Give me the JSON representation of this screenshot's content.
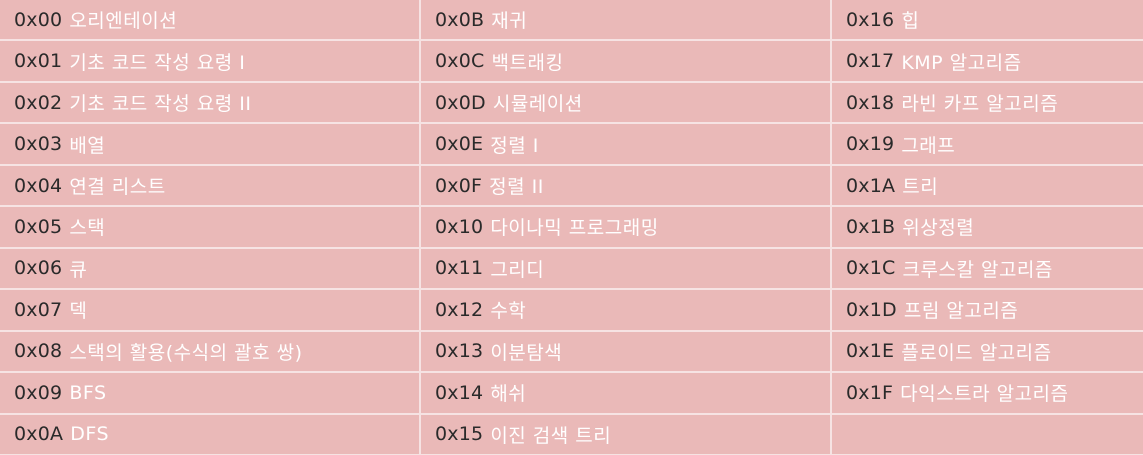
{
  "columns": [
    [
      {
        "code": "0x00",
        "title": "오리엔테이션"
      },
      {
        "code": "0x01",
        "title": "기초 코드 작성 요령 I"
      },
      {
        "code": "0x02",
        "title": "기초 코드 작성 요령 II"
      },
      {
        "code": "0x03",
        "title": "배열"
      },
      {
        "code": "0x04",
        "title": "연결 리스트"
      },
      {
        "code": "0x05",
        "title": "스택"
      },
      {
        "code": "0x06",
        "title": "큐"
      },
      {
        "code": "0x07",
        "title": "덱"
      },
      {
        "code": "0x08",
        "title": "스택의 활용(수식의 괄호 쌍)"
      },
      {
        "code": "0x09",
        "title": "BFS"
      },
      {
        "code": "0x0A",
        "title": "DFS"
      }
    ],
    [
      {
        "code": "0x0B",
        "title": "재귀"
      },
      {
        "code": "0x0C",
        "title": "백트래킹"
      },
      {
        "code": "0x0D",
        "title": "시뮬레이션"
      },
      {
        "code": "0x0E",
        "title": "정렬 I"
      },
      {
        "code": "0x0F",
        "title": "정렬 II"
      },
      {
        "code": "0x10",
        "title": "다이나믹 프로그래밍"
      },
      {
        "code": "0x11",
        "title": "그리디"
      },
      {
        "code": "0x12",
        "title": "수학"
      },
      {
        "code": "0x13",
        "title": "이분탐색"
      },
      {
        "code": "0x14",
        "title": "해쉬"
      },
      {
        "code": "0x15",
        "title": "이진 검색 트리"
      }
    ],
    [
      {
        "code": "0x16",
        "title": "힙"
      },
      {
        "code": "0x17",
        "title": "KMP 알고리즘"
      },
      {
        "code": "0x18",
        "title": "라빈 카프 알고리즘"
      },
      {
        "code": "0x19",
        "title": "그래프"
      },
      {
        "code": "0x1A",
        "title": "트리"
      },
      {
        "code": "0x1B",
        "title": "위상정렬"
      },
      {
        "code": "0x1C",
        "title": "크루스칼 알고리즘"
      },
      {
        "code": "0x1D",
        "title": "프림 알고리즘"
      },
      {
        "code": "0x1E",
        "title": "플로이드 알고리즘"
      },
      {
        "code": "0x1F",
        "title": "다익스트라 알고리즘"
      }
    ]
  ]
}
